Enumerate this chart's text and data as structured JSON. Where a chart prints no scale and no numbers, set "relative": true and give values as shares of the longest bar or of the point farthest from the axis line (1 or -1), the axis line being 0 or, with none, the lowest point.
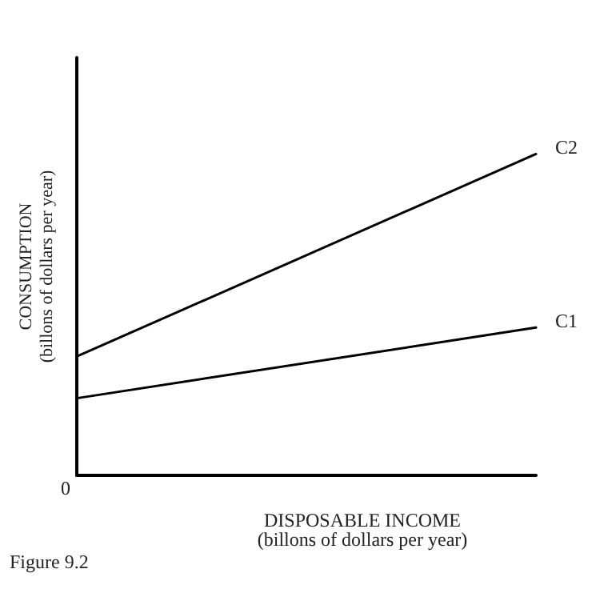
{
  "chart_data": {
    "type": "line",
    "relative": true,
    "xlabel": "DISPOSABLE INCOME\n(billons of dollars per year)",
    "ylabel": "CONSUMPTION\n(billons of dollars per year)",
    "categories": [
      null,
      null
    ],
    "series": [
      {
        "name": "C2",
        "color": "#000000",
        "values": [
          0.37,
          1
        ]
      },
      {
        "name": "C1",
        "color": "#000000",
        "values": [
          0.24,
          0.46
        ]
      }
    ],
    "marker": "none",
    "line_style": "solid",
    "grid": false,
    "legend": false,
    "annotations": [
      "0",
      "Figure 9.2"
    ]
  }
}
